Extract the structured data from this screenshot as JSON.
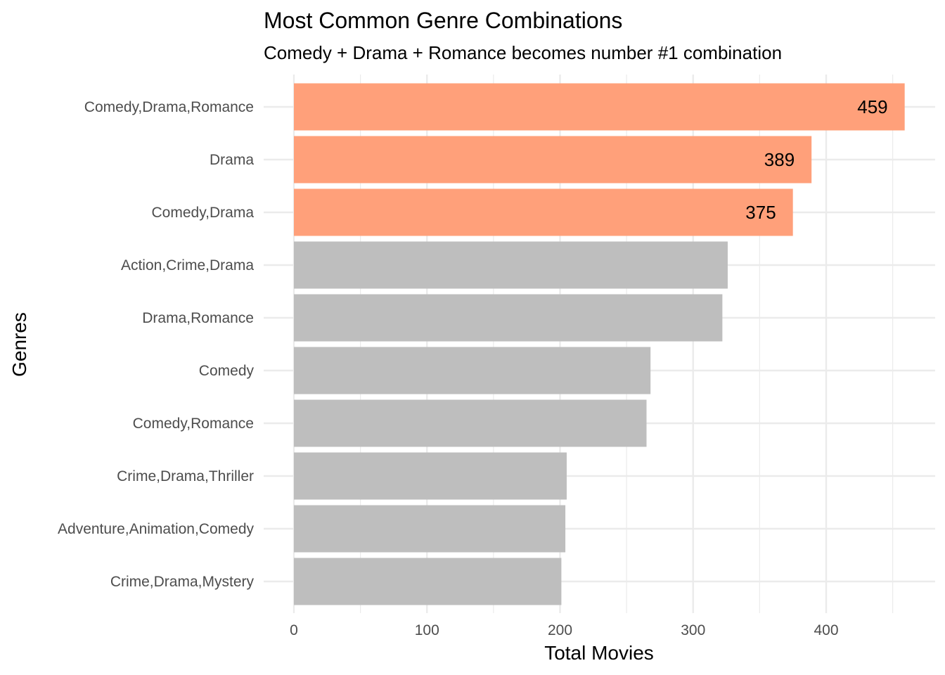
{
  "chart_data": {
    "type": "bar",
    "orientation": "horizontal",
    "title": "Most Common Genre Combinations",
    "subtitle": "Comedy + Drama + Romance becomes number #1 combination",
    "xlabel": "Total Movies",
    "ylabel": "Genres",
    "xlim": [
      0,
      470
    ],
    "x_ticks": [
      0,
      100,
      200,
      300,
      400
    ],
    "x_tick_labels": [
      "0",
      "100",
      "200",
      "300",
      "400"
    ],
    "grid": true,
    "legend": "none",
    "categories": [
      "Comedy,Drama,Romance",
      "Drama",
      "Comedy,Drama",
      "Action,Crime,Drama",
      "Drama,Romance",
      "Comedy",
      "Comedy,Romance",
      "Crime,Drama,Thriller",
      "Adventure,Animation,Comedy",
      "Crime,Drama,Mystery"
    ],
    "values": [
      459,
      389,
      375,
      326,
      322,
      268,
      265,
      205,
      204,
      201
    ],
    "highlighted": [
      true,
      true,
      true,
      false,
      false,
      false,
      false,
      false,
      false,
      false
    ],
    "data_labels": [
      "459",
      "389",
      "375",
      "",
      "",
      "",
      "",
      "",
      "",
      ""
    ],
    "colors": {
      "highlight": "#ffa07a",
      "default": "#bebebe",
      "grid": "#ebebeb",
      "tick_text": "#4d4d4d",
      "text": "#000000"
    }
  }
}
